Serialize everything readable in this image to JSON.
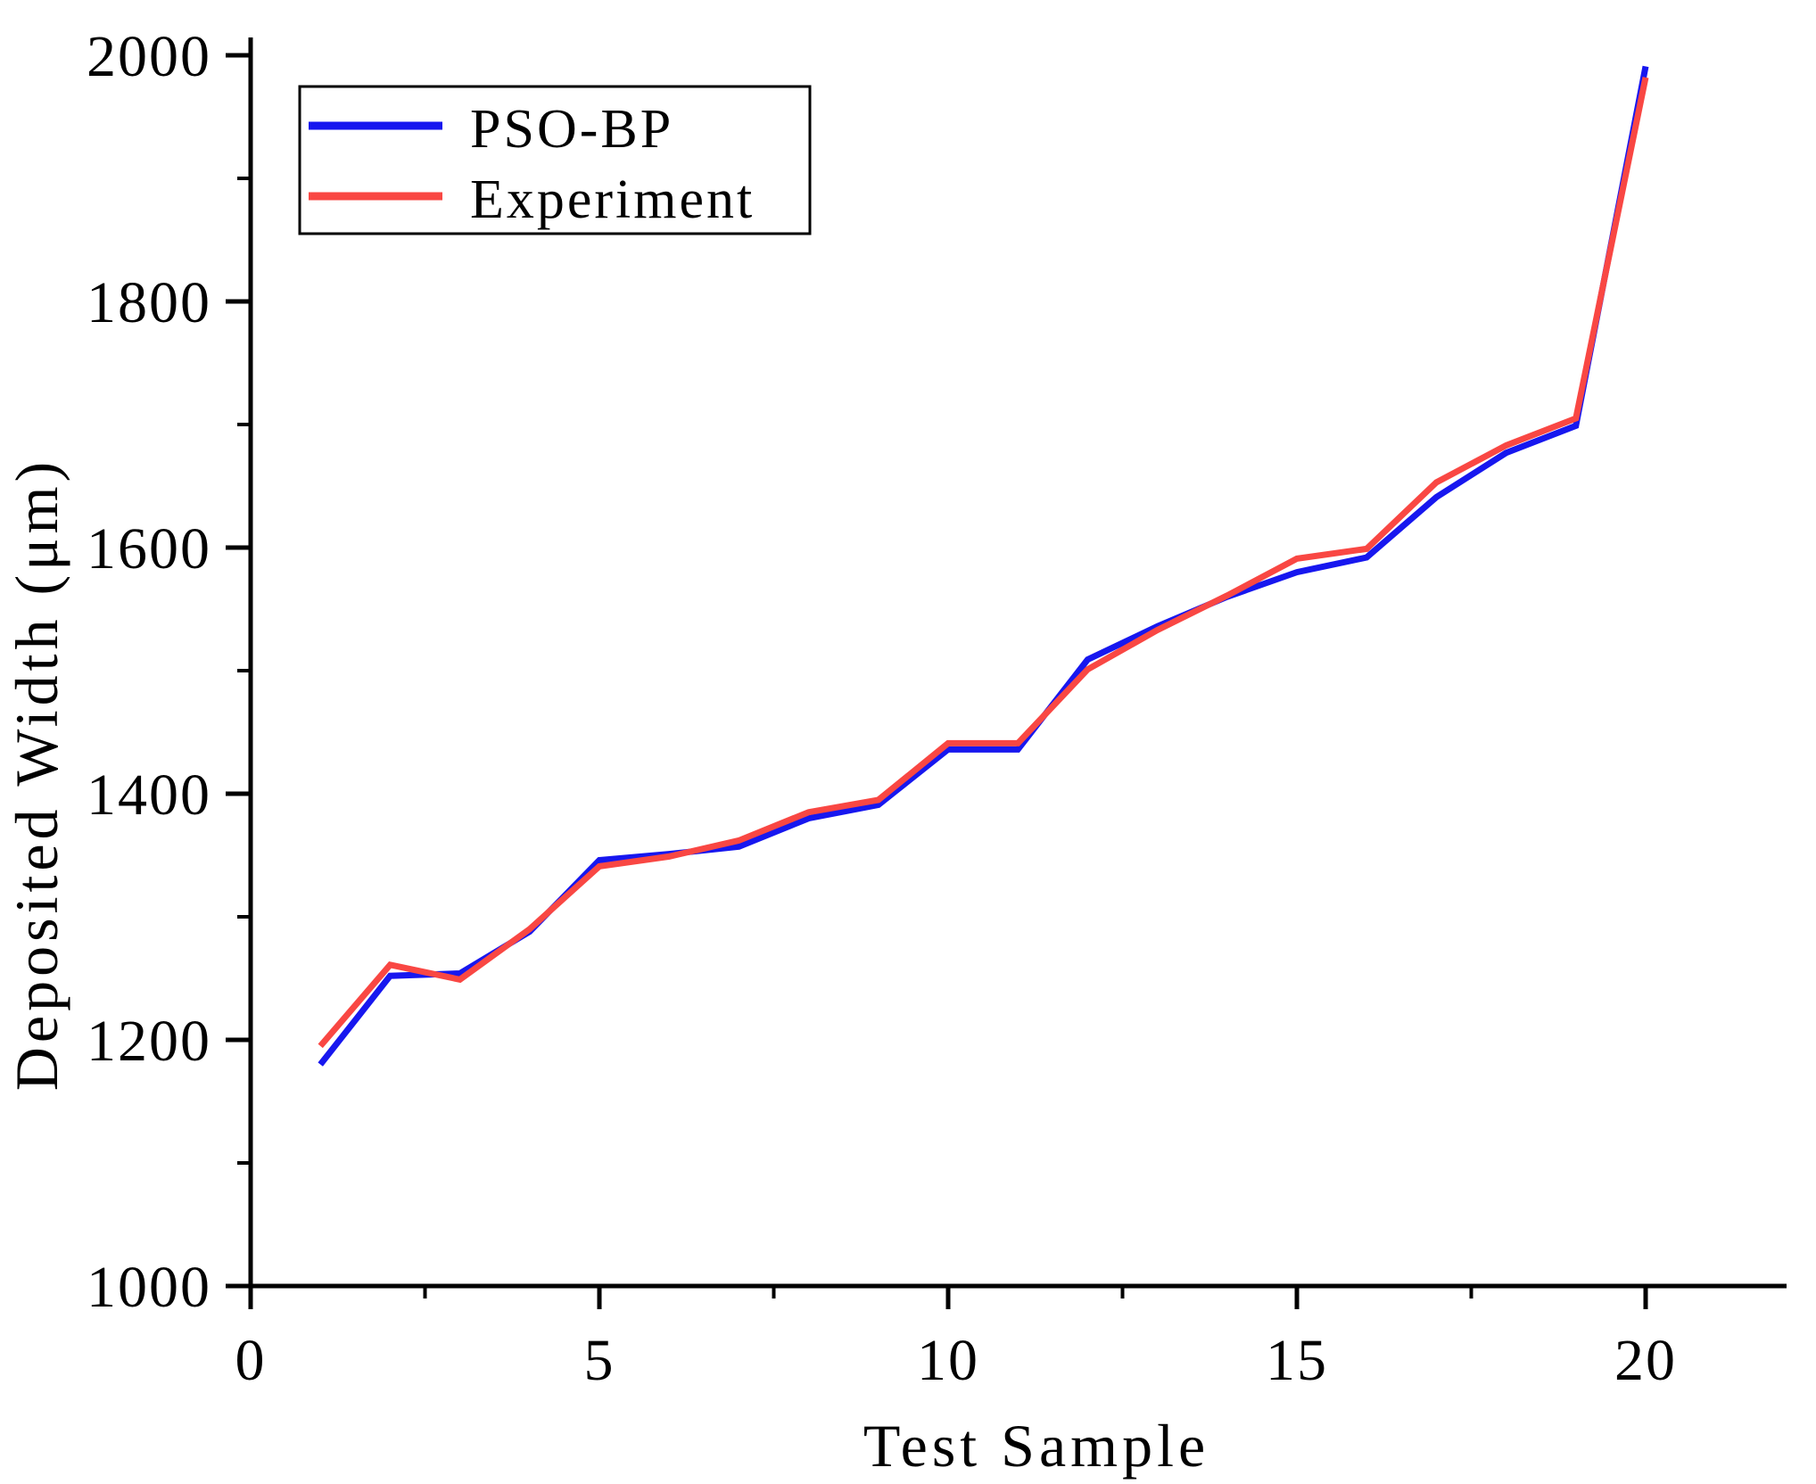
{
  "chart_data": {
    "type": "line",
    "title": "",
    "xlabel": "Test Sample",
    "ylabel": "Deposited Width (μm)",
    "xlim": [
      0,
      22
    ],
    "ylim": [
      1000,
      2000
    ],
    "grid": false,
    "legend_position": "top-left",
    "x_major_ticks": [
      0,
      5,
      10,
      15,
      20
    ],
    "x_minor_ticks": [
      2.5,
      7.5,
      12.5,
      17.5
    ],
    "y_major_ticks": [
      1000,
      1200,
      1400,
      1600,
      1800,
      2000
    ],
    "y_minor_ticks": [
      1100,
      1300,
      1500,
      1700,
      1900
    ],
    "x": [
      1,
      2,
      3,
      4,
      5,
      6,
      7,
      8,
      9,
      10,
      11,
      12,
      13,
      14,
      15,
      16,
      17,
      18,
      19,
      20
    ],
    "series": [
      {
        "name": "PSO-BP",
        "color": "#1717ef",
        "values": [
          1180,
          1252,
          1254,
          1288,
          1346,
          1351,
          1357,
          1380,
          1391,
          1436,
          1436,
          1509,
          1536,
          1560,
          1580,
          1592,
          1641,
          1677,
          1699,
          1991
        ]
      },
      {
        "name": "Experiment",
        "color": "#f94743",
        "values": [
          1195,
          1261,
          1249,
          1290,
          1341,
          1349,
          1362,
          1385,
          1395,
          1441,
          1441,
          1501,
          1533,
          1561,
          1591,
          1599,
          1653,
          1683,
          1705,
          1982
        ]
      }
    ],
    "axis_color": "#000000",
    "background_color": "#ffffff"
  }
}
